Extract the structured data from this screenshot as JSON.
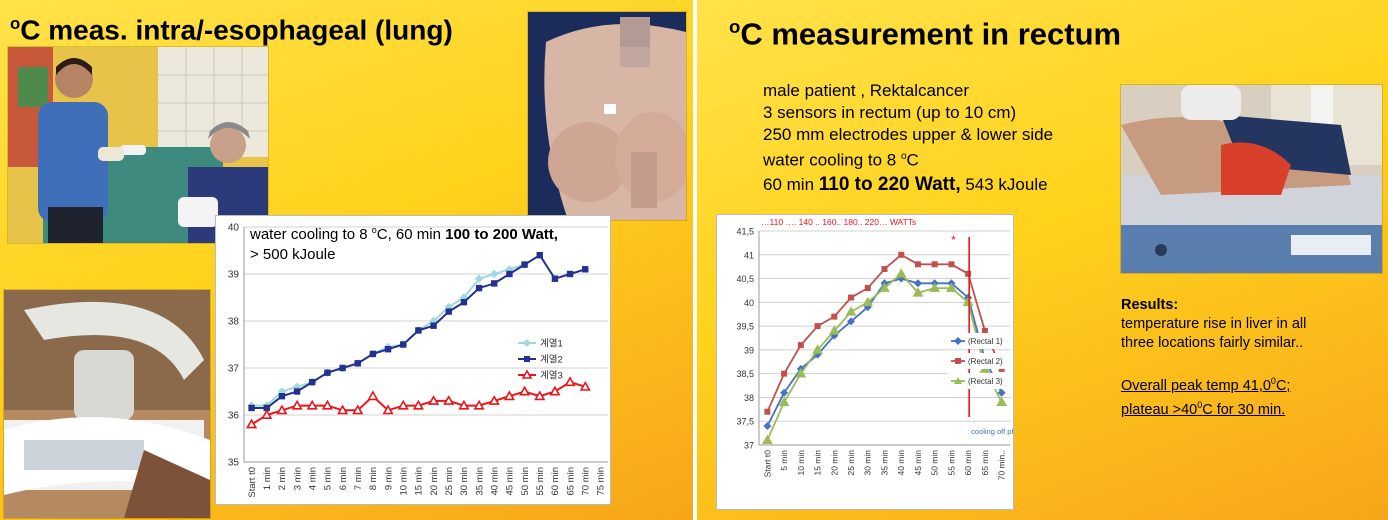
{
  "left_slide": {
    "title": "C meas. intra/-esophageal (lung)",
    "title_superscript": "o",
    "chart_annotation": {
      "line1_pre": "water cooling to 8 ",
      "line1_sup": "o",
      "line1_mid": "C,  60 min ",
      "line1_bold": "100 to 200 Watt,",
      "line2": "> 500 kJoule"
    }
  },
  "right_slide": {
    "title": "C measurement in rectum",
    "title_superscript": "o",
    "text_lines": [
      "male patient , Rektalcancer",
      "3 sensors in rectum (up to 10 cm)",
      "250 mm electrodes upper & lower side"
    ],
    "cooling_line_pre": "water cooling to 8 ",
    "cooling_line_sup": "o",
    "cooling_line_post": "C",
    "power_pre": "60 min ",
    "power_bold": "110 to 220 Watt,",
    "power_post": " 543 kJoule",
    "results": {
      "heading": "Results:",
      "line1": "temperature rise in liver  in all",
      "line2": "three locations fairly similar..",
      "peak_pre": "Overall peak temp  41,0",
      "peak_sup": "0",
      "peak_post": "C;",
      "plateau_pre": "plateau >40",
      "plateau_sup": "0",
      "plateau_post": "C for 30 min."
    }
  },
  "chart_data": [
    {
      "type": "line",
      "categories": [
        "Start t0",
        "1 min",
        "2 min",
        "3 min",
        "4 min",
        "5 min",
        "6 min",
        "7 min",
        "8 min",
        "9 min",
        "10 min",
        "15 min",
        "20 min",
        "25 min",
        "30 min",
        "35 min",
        "40 min",
        "45 min",
        "50 min",
        "55 min",
        "60 min",
        "65 min",
        "70 min",
        "75 min"
      ],
      "ylim": [
        35,
        40
      ],
      "yticks": [
        35,
        36,
        37,
        38,
        39,
        40
      ],
      "grid": true,
      "legend": "right",
      "series": [
        {
          "name": "계열1",
          "color": "#9ed9de",
          "marker": "diamond",
          "values": [
            36.2,
            36.2,
            36.5,
            36.6,
            36.7,
            36.9,
            37.0,
            37.1,
            37.3,
            37.45,
            37.5,
            37.8,
            38.0,
            38.3,
            38.5,
            38.9,
            39.0,
            39.1,
            39.2,
            null,
            null,
            null,
            null,
            null
          ]
        },
        {
          "name": "계열2",
          "color": "#25318f",
          "marker": "square",
          "values": [
            36.15,
            36.15,
            36.4,
            36.5,
            36.7,
            36.9,
            37.0,
            37.1,
            37.3,
            37.4,
            37.5,
            37.8,
            37.9,
            38.2,
            38.4,
            38.7,
            38.8,
            39.0,
            39.2,
            39.4,
            38.9,
            39.0,
            39.1,
            null
          ]
        },
        {
          "name": "계열3",
          "color": "#e8161b",
          "marker": "triangle",
          "values": [
            35.8,
            36.0,
            36.1,
            36.2,
            36.2,
            36.2,
            36.1,
            36.1,
            36.4,
            36.1,
            36.2,
            36.2,
            36.3,
            36.3,
            36.2,
            36.2,
            36.3,
            36.4,
            36.5,
            36.4,
            36.5,
            36.7,
            36.6,
            null
          ]
        }
      ]
    },
    {
      "type": "line",
      "categories": [
        "Start t0",
        "5 min",
        "10 min",
        "15 min",
        "20 min",
        "25 min",
        "30 min",
        "35 min",
        "40 min",
        "45 min",
        "50 min",
        "55 min",
        "60 min",
        "65 min",
        "70 min.."
      ],
      "ylim": [
        37,
        41.5
      ],
      "yticks": [
        "37",
        "37,5",
        "38",
        "38,5",
        "39",
        "39,5",
        "40",
        "40,5",
        "41",
        "41,5"
      ],
      "ytick_values": [
        37,
        37.5,
        38,
        38.5,
        39,
        39.5,
        40,
        40.5,
        41,
        41.5
      ],
      "grid": true,
      "legend": "right",
      "header_annotation": "…110 …. 140 .. 160.. 180..   220…   WATTs",
      "star_annotation": "*",
      "vertical_marker": {
        "x_category": "60 min",
        "label": "cooling off phase",
        "color": "#e8161b"
      },
      "series": [
        {
          "name": "(Rectal 1)",
          "color": "#4472c4",
          "marker": "diamond",
          "values": [
            37.4,
            38.1,
            38.6,
            38.9,
            39.3,
            39.6,
            39.9,
            40.4,
            40.5,
            40.4,
            40.4,
            40.4,
            40.1,
            38.8,
            38.1
          ]
        },
        {
          "name": "(Rectal 2)",
          "color": "#c0504d",
          "marker": "square",
          "values": [
            37.7,
            38.5,
            39.1,
            39.5,
            39.7,
            40.1,
            40.3,
            40.7,
            41.0,
            40.8,
            40.8,
            40.8,
            40.6,
            39.4,
            38.6
          ]
        },
        {
          "name": "(Rectal 3)",
          "color": "#9bbb59",
          "marker": "triangle",
          "values": [
            37.1,
            37.9,
            38.5,
            39.0,
            39.4,
            39.8,
            40.0,
            40.3,
            40.6,
            40.2,
            40.3,
            40.3,
            40.0,
            38.6,
            37.9
          ]
        }
      ]
    }
  ]
}
